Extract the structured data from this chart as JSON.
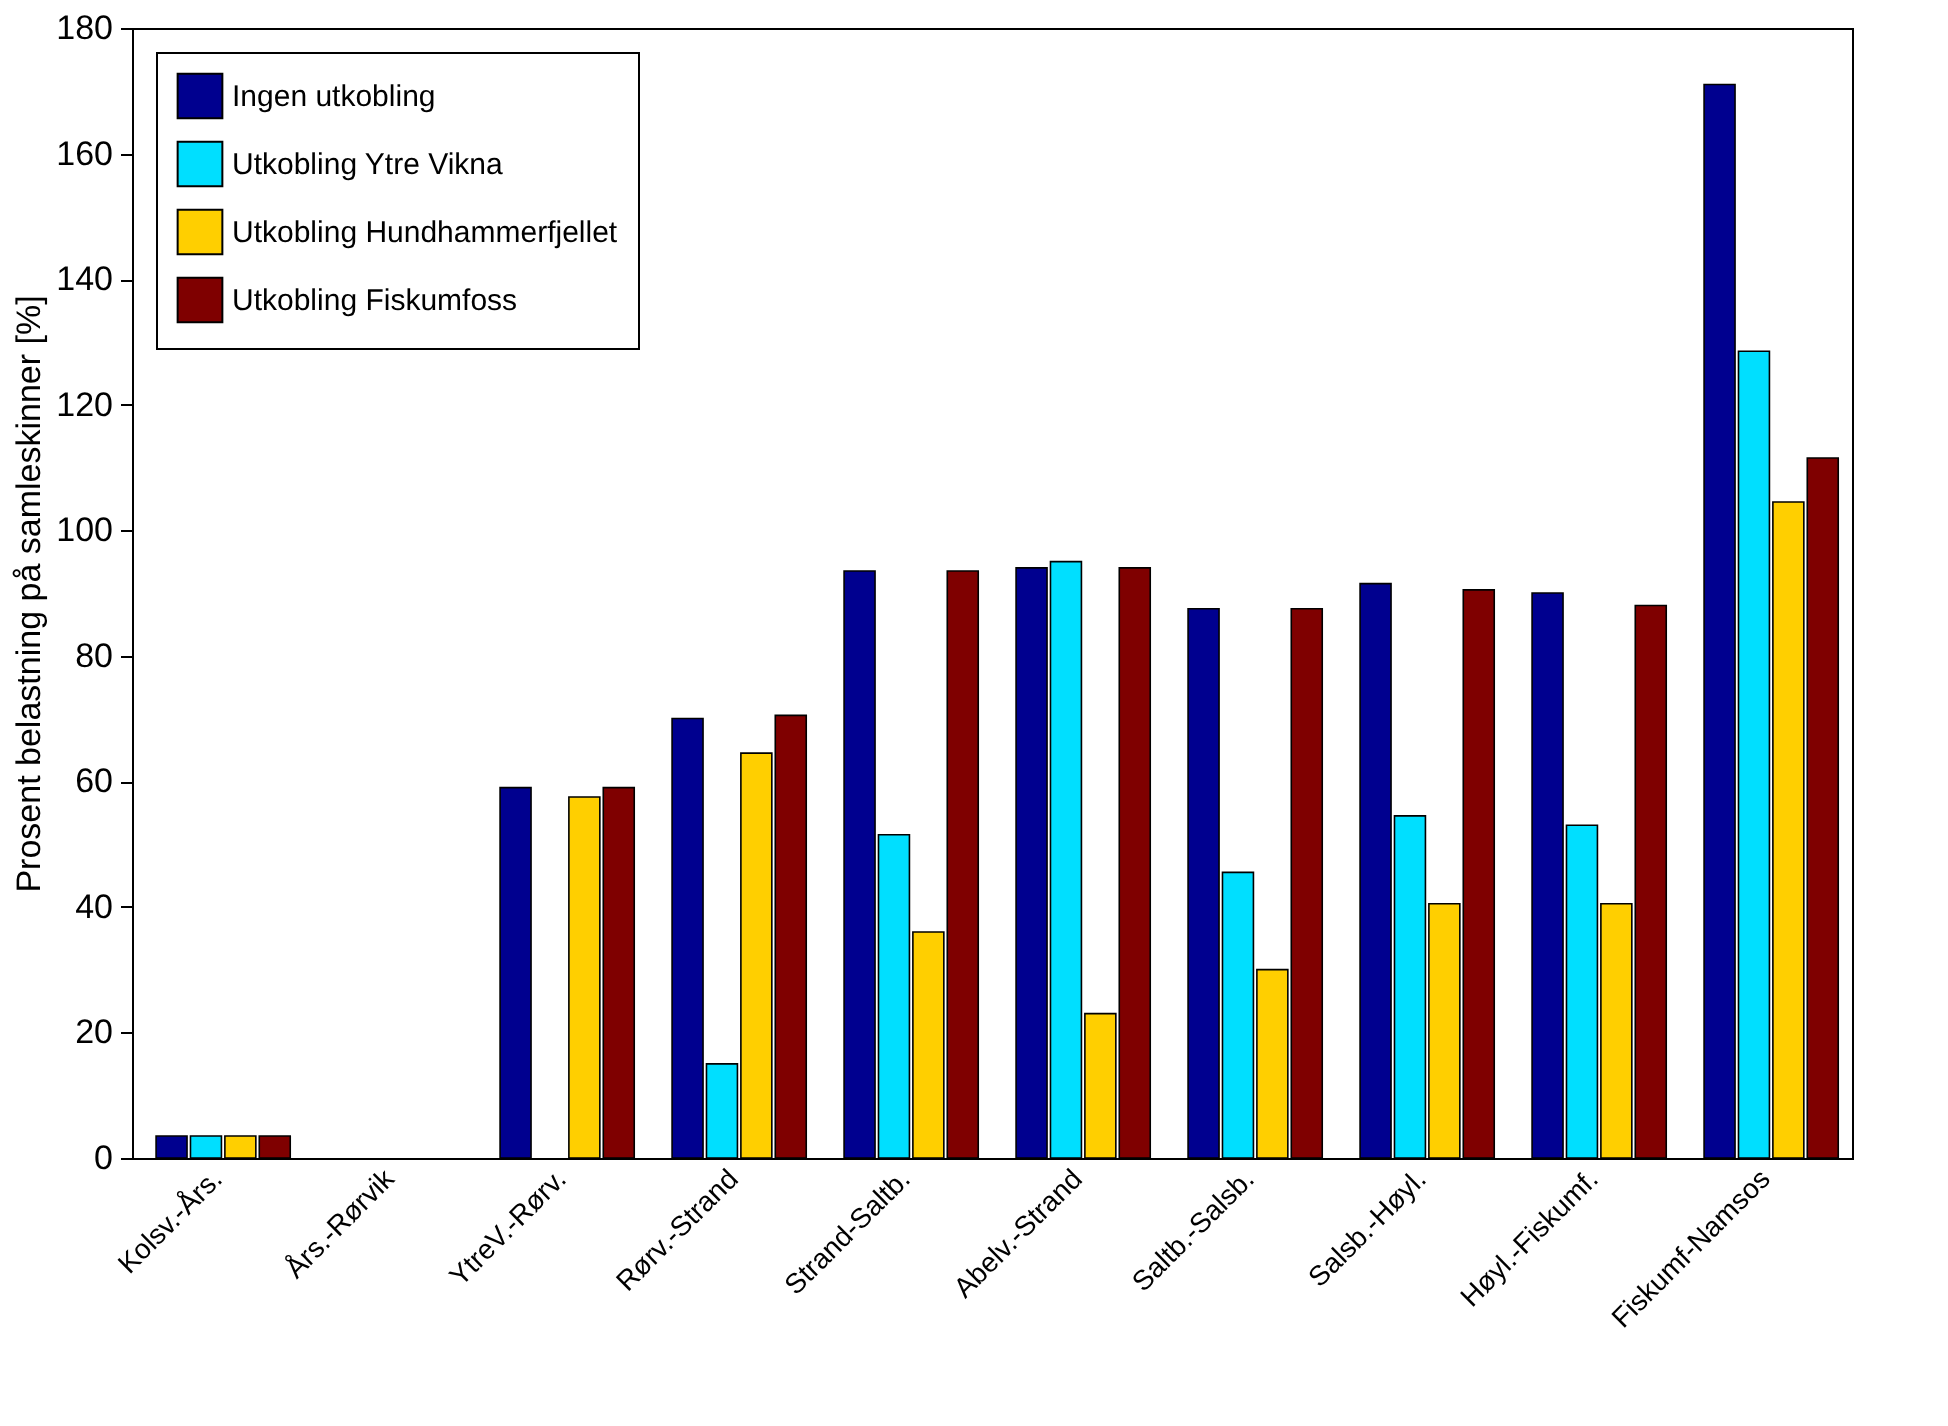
{
  "chart_data": {
    "type": "bar",
    "ylabel": "Prosent belastning på samleskinner [%]",
    "categories": [
      "Kolsv.-Års.",
      "Års.-Rørvik",
      "YtreV.-Rørv.",
      "Rørv.-Strand",
      "Strand-Saltb.",
      "Abelv.-Strand",
      "Saltb.-Salsb.",
      "Salsb.-Høyl.",
      "Høyl.-Fiskumf.",
      "Fiskumf-Namsos"
    ],
    "series": [
      {
        "name": "Ingen utkobling",
        "color": "#00008f",
        "values": [
          3.5,
          null,
          59,
          70,
          93.5,
          94,
          87.5,
          91.5,
          90,
          171
        ]
      },
      {
        "name": "Utkobling Ytre Vikna",
        "color": "#00dfff",
        "values": [
          3.5,
          null,
          null,
          15,
          51.5,
          95,
          45.5,
          54.5,
          53,
          128.5
        ]
      },
      {
        "name": "Utkobling Hundhammerfjellet",
        "color": "#ffcf00",
        "values": [
          3.5,
          null,
          57.5,
          64.5,
          36,
          23,
          30,
          40.5,
          40.5,
          104.5
        ]
      },
      {
        "name": "Utkobling Fiskumfoss",
        "color": "#7f0000",
        "values": [
          3.5,
          null,
          59,
          70.5,
          93.5,
          94,
          87.5,
          90.5,
          88,
          111.5
        ]
      }
    ],
    "ylim": [
      0,
      180
    ],
    "yticks": [
      0,
      20,
      40,
      60,
      80,
      100,
      120,
      140,
      160,
      180
    ],
    "grid": false,
    "legend": "top left"
  }
}
